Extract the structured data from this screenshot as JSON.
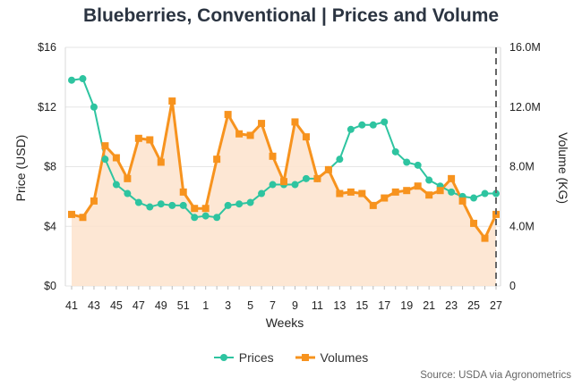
{
  "chart_data": {
    "type": "line",
    "title": "Blueberries, Conventional | Prices and Volume",
    "xlabel": "Weeks",
    "ylabel": "Price (USD)",
    "y2label": "Volume (KG)",
    "ylim": [
      0,
      16
    ],
    "y2lim": [
      0,
      16000000
    ],
    "y_ticks": [
      "$0",
      "$4",
      "$8",
      "$12",
      "$16"
    ],
    "y2_ticks": [
      "0",
      "4.0M",
      "8.0M",
      "12.0M",
      "16.0M"
    ],
    "x": [
      "41",
      "42",
      "43",
      "44",
      "45",
      "46",
      "47",
      "48",
      "49",
      "50",
      "51",
      "52",
      "1",
      "2",
      "3",
      "4",
      "5",
      "6",
      "7",
      "8",
      "9",
      "10",
      "11",
      "12",
      "13",
      "14",
      "15",
      "16",
      "17",
      "18",
      "19",
      "20",
      "21",
      "22",
      "23",
      "24",
      "25",
      "26",
      "27"
    ],
    "x_tick_labels": [
      "41",
      "43",
      "45",
      "47",
      "49",
      "51",
      "1",
      "3",
      "5",
      "7",
      "9",
      "11",
      "13",
      "15",
      "17",
      "19",
      "21",
      "23",
      "25",
      "27"
    ],
    "series": [
      {
        "name": "Prices",
        "axis": "left",
        "color": "#2ec4a0",
        "marker": "circle",
        "values": [
          13.8,
          13.9,
          12.0,
          8.5,
          6.8,
          6.2,
          5.6,
          5.3,
          5.5,
          5.4,
          5.4,
          4.6,
          4.7,
          4.6,
          5.4,
          5.5,
          5.6,
          6.2,
          6.8,
          6.8,
          6.8,
          7.2,
          7.2,
          7.8,
          8.5,
          10.5,
          10.8,
          10.8,
          11.0,
          9.0,
          8.3,
          8.1,
          7.1,
          6.7,
          6.3,
          6.0,
          5.9,
          6.2,
          6.2
        ]
      },
      {
        "name": "Volumes",
        "axis": "right",
        "color": "#f7931e",
        "marker": "square",
        "fill": "#fde3cc",
        "values": [
          4800000,
          4600000,
          5700000,
          9400000,
          8600000,
          7200000,
          9900000,
          9800000,
          8300000,
          12400000,
          6300000,
          5200000,
          5200000,
          8500000,
          11500000,
          10200000,
          10100000,
          10900000,
          8700000,
          7000000,
          11000000,
          10000000,
          7200000,
          7800000,
          6200000,
          6300000,
          6200000,
          5400000,
          5900000,
          6300000,
          6400000,
          6700000,
          6100000,
          6400000,
          7200000,
          5700000,
          4200000,
          3200000,
          4800000
        ]
      }
    ],
    "marker_line_after_x": "27",
    "grid": true,
    "legend_position": "bottom"
  },
  "source": "Source: USDA via Agronometrics"
}
